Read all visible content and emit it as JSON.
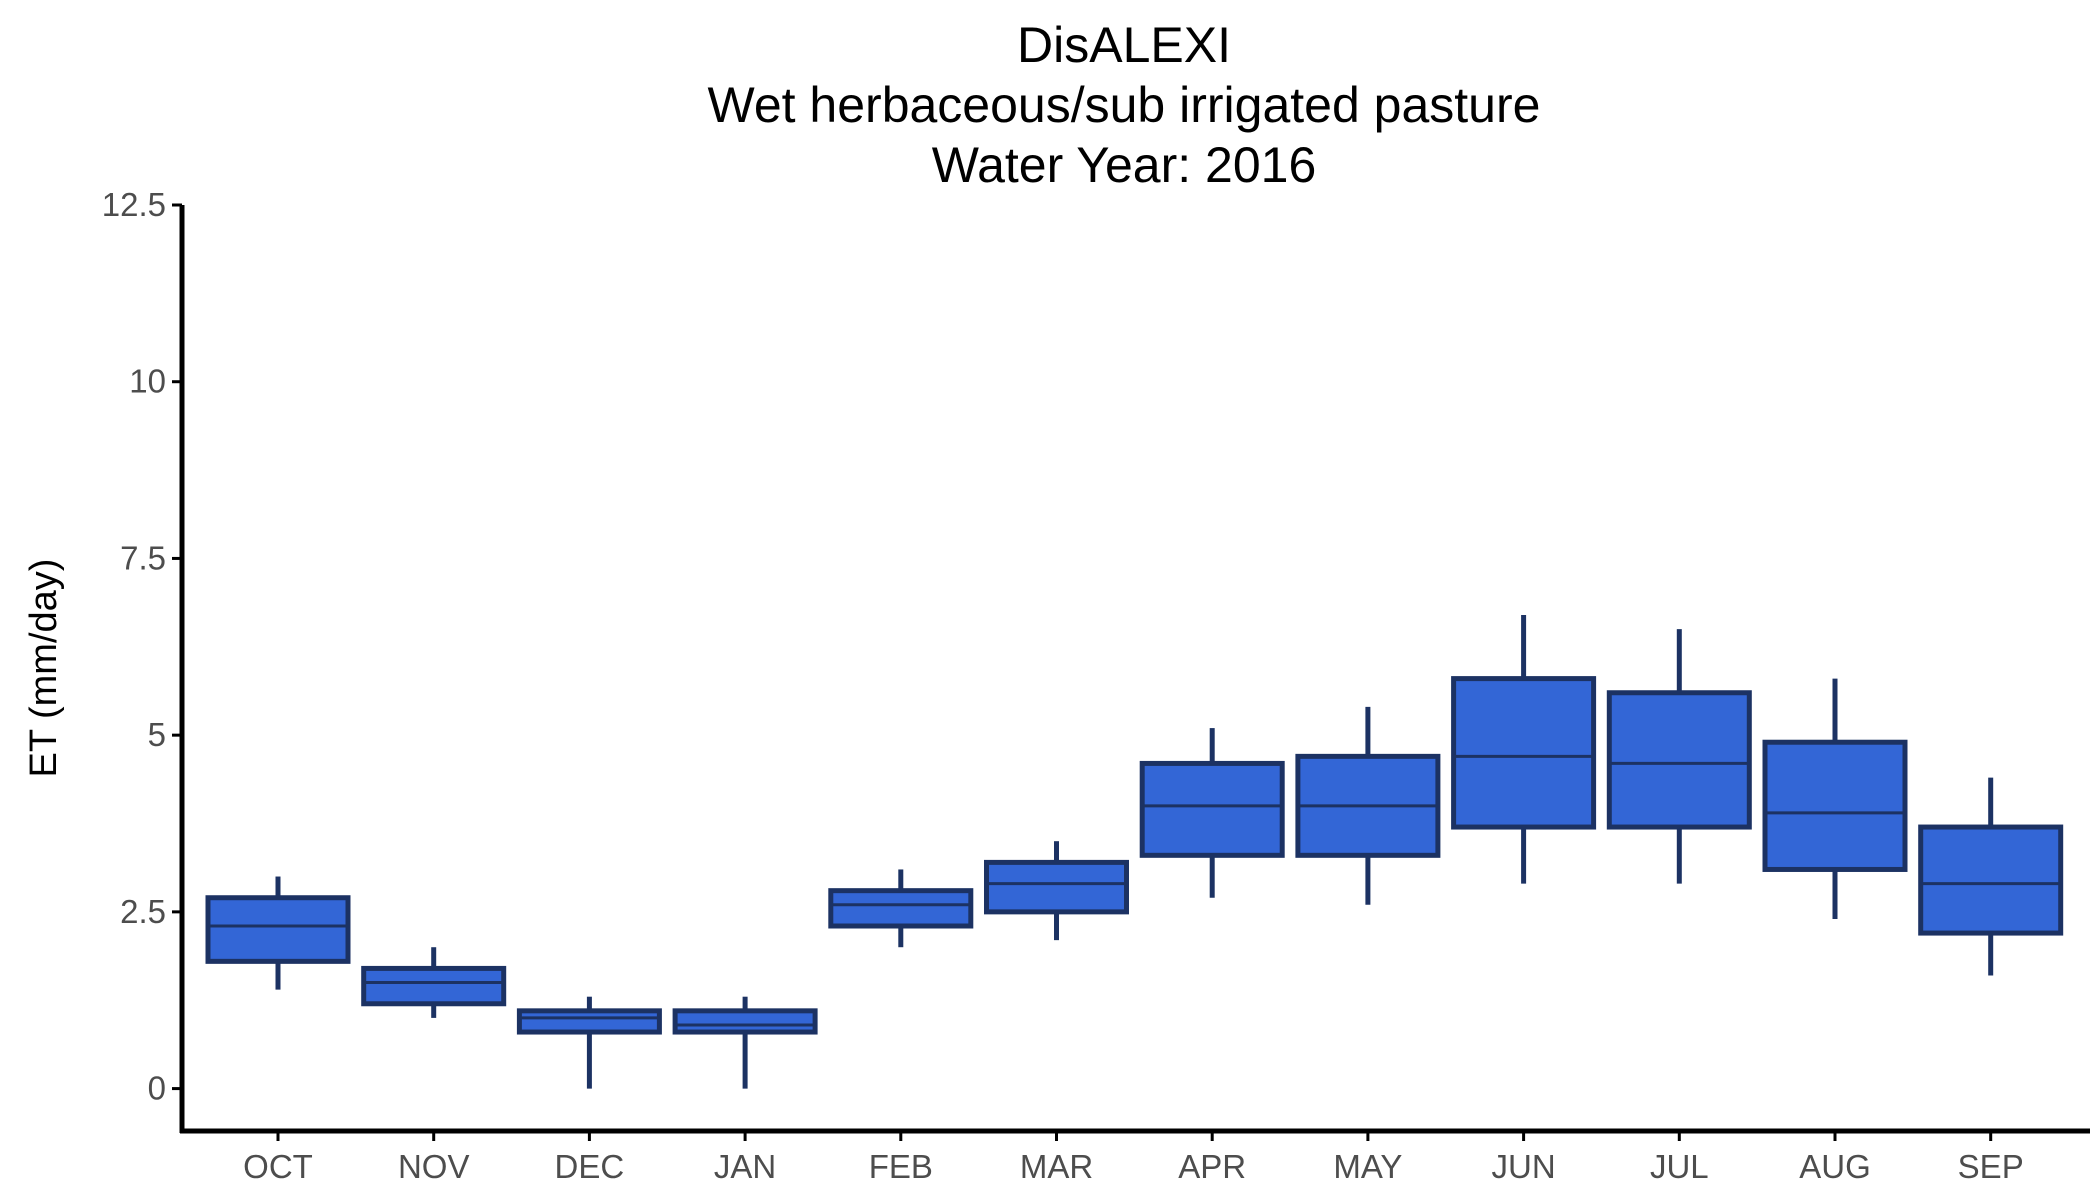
{
  "chart_data": {
    "type": "box",
    "title_lines": [
      "DisALEXI",
      "Wet herbaceous/sub irrigated pasture",
      "Water Year: 2016"
    ],
    "xlabel": "",
    "ylabel": "ET (mm/day)",
    "ylim": [
      -0.6,
      12.5
    ],
    "yticks": [
      0,
      2.5,
      5,
      7.5,
      10,
      12.5
    ],
    "ytick_labels": [
      "0",
      "2.5",
      "5",
      "7.5",
      "10",
      "12.5"
    ],
    "categories": [
      "OCT",
      "NOV",
      "DEC",
      "JAN",
      "FEB",
      "MAR",
      "APR",
      "MAY",
      "JUN",
      "JUL",
      "AUG",
      "SEP"
    ],
    "boxes": [
      {
        "whisker_low": 1.4,
        "q1": 1.8,
        "median": 2.3,
        "q3": 2.7,
        "whisker_high": 3.0
      },
      {
        "whisker_low": 1.0,
        "q1": 1.2,
        "median": 1.5,
        "q3": 1.7,
        "whisker_high": 2.0
      },
      {
        "whisker_low": 0.0,
        "q1": 0.8,
        "median": 1.0,
        "q3": 1.1,
        "whisker_high": 1.3
      },
      {
        "whisker_low": 0.0,
        "q1": 0.8,
        "median": 0.9,
        "q3": 1.1,
        "whisker_high": 1.3
      },
      {
        "whisker_low": 2.0,
        "q1": 2.3,
        "median": 2.6,
        "q3": 2.8,
        "whisker_high": 3.1
      },
      {
        "whisker_low": 2.1,
        "q1": 2.5,
        "median": 2.9,
        "q3": 3.2,
        "whisker_high": 3.5
      },
      {
        "whisker_low": 2.7,
        "q1": 3.3,
        "median": 4.0,
        "q3": 4.6,
        "whisker_high": 5.1
      },
      {
        "whisker_low": 2.6,
        "q1": 3.3,
        "median": 4.0,
        "q3": 4.7,
        "whisker_high": 5.4
      },
      {
        "whisker_low": 2.9,
        "q1": 3.7,
        "median": 4.7,
        "q3": 5.8,
        "whisker_high": 6.7
      },
      {
        "whisker_low": 2.9,
        "q1": 3.7,
        "median": 4.6,
        "q3": 5.6,
        "whisker_high": 6.5
      },
      {
        "whisker_low": 2.4,
        "q1": 3.1,
        "median": 3.9,
        "q3": 4.9,
        "whisker_high": 5.8
      },
      {
        "whisker_low": 1.6,
        "q1": 2.2,
        "median": 2.9,
        "q3": 3.7,
        "whisker_high": 4.4
      }
    ],
    "colors": {
      "box_fill": "#3366d6",
      "box_outline": "#1c3263",
      "axis": "#000000",
      "tick_label": "#4d4d4d",
      "background": "#ffffff"
    },
    "grid": false,
    "legend": "none"
  }
}
